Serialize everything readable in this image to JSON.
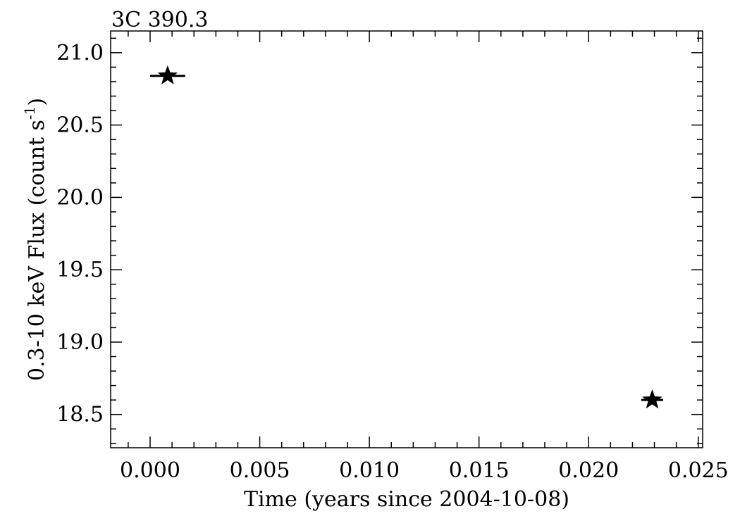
{
  "chart_data": {
    "type": "scatter",
    "title": "3C 390.3",
    "xlabel": "Time (years since 2004-10-08)",
    "ylabel": {
      "main": "0.3-10 keV Flux (count s",
      "superscript": "-1",
      "close": ")"
    },
    "xlim": [
      -0.0018,
      0.0252
    ],
    "ylim": [
      18.27,
      21.15
    ],
    "x_ticks": [
      {
        "value": 0.0,
        "label": "0.000"
      },
      {
        "value": 0.005,
        "label": "0.005"
      },
      {
        "value": 0.01,
        "label": "0.010"
      },
      {
        "value": 0.015,
        "label": "0.015"
      },
      {
        "value": 0.02,
        "label": "0.020"
      },
      {
        "value": 0.025,
        "label": "0.025"
      }
    ],
    "y_ticks": [
      {
        "value": 18.5,
        "label": "18.5"
      },
      {
        "value": 19.0,
        "label": "19.0"
      },
      {
        "value": 19.5,
        "label": "19.5"
      },
      {
        "value": 20.0,
        "label": "20.0"
      },
      {
        "value": 20.5,
        "label": "20.5"
      },
      {
        "value": 21.0,
        "label": "21.0"
      }
    ],
    "x_minor_step": 0.001,
    "y_minor_step": 0.1,
    "marker": "star",
    "color": "#000000",
    "grid": false,
    "points": [
      {
        "x": 0.0008,
        "y": 20.84,
        "xerr": 0.0008,
        "yerr": 0.01
      },
      {
        "x": 0.0229,
        "y": 18.6,
        "xerr": 0.0005,
        "yerr": 0.01
      }
    ]
  }
}
